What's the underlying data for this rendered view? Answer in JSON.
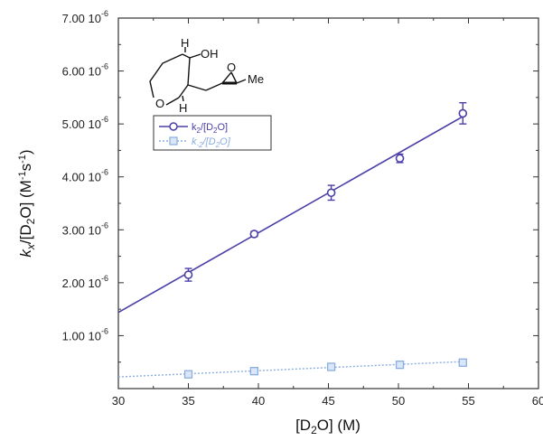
{
  "chart_data": {
    "type": "scatter",
    "xlabel": {
      "prefix": "[D",
      "sub": "2",
      "suffix": "O] (M)"
    },
    "ylabel": {
      "italic": "k",
      "italic_sub": "x",
      "mid": "/[D",
      "sub": "2",
      "mid2": "O] (M",
      "sup1": "-1",
      "mid3": "s",
      "sup2": "-1",
      "end": ")"
    },
    "xlim": [
      30,
      60
    ],
    "ylim": [
      0,
      7e-06
    ],
    "x_ticks": [
      "30",
      "35",
      "40",
      "45",
      "50",
      "55",
      "60"
    ],
    "y_ticks": [
      {
        "mantissa": "1.00 10",
        "exp": "-6"
      },
      {
        "mantissa": "2.00 10",
        "exp": "-6"
      },
      {
        "mantissa": "3.00 10",
        "exp": "-6"
      },
      {
        "mantissa": "4.00 10",
        "exp": "-6"
      },
      {
        "mantissa": "5.00 10",
        "exp": "-6"
      },
      {
        "mantissa": "6.00 10",
        "exp": "-6"
      },
      {
        "mantissa": "7.00 10",
        "exp": "-6"
      }
    ],
    "grid": false,
    "legend_position": "upper-left",
    "series": [
      {
        "name": "k2/[D2O]",
        "legend_label": {
          "pre": "k",
          "sub": "2",
          "mid": "/[D",
          "sub2": "2",
          "post": "O]"
        },
        "color": "#4a3fa8",
        "marker": "circle",
        "line_style": "solid",
        "points": [
          {
            "x": 35.0,
            "y": 2.15e-06,
            "err": 1.2e-07
          },
          {
            "x": 39.7,
            "y": 2.92e-06,
            "err": 5e-08
          },
          {
            "x": 45.2,
            "y": 3.7e-06,
            "err": 1.4e-07
          },
          {
            "x": 50.1,
            "y": 4.35e-06,
            "err": 8e-08
          },
          {
            "x": 54.6,
            "y": 5.2e-06,
            "err": 2e-07
          }
        ],
        "fit": [
          [
            30,
            1.44e-06
          ],
          [
            54.6,
            5.14e-06
          ]
        ]
      },
      {
        "name": "k-2/[D2O]",
        "legend_label": {
          "pre": "k",
          "sub": "-2",
          "mid": "/[D",
          "sub2": "2",
          "post": "O]"
        },
        "color": "#8aaee0",
        "marker": "square",
        "line_style": "dotted",
        "points": [
          {
            "x": 35.0,
            "y": 2.7e-07,
            "err": 3e-08
          },
          {
            "x": 39.7,
            "y": 3.3e-07,
            "err": 3e-08
          },
          {
            "x": 45.2,
            "y": 4.1e-07,
            "err": 3e-08
          },
          {
            "x": 50.1,
            "y": 4.5e-07,
            "err": 3e-08
          },
          {
            "x": 54.6,
            "y": 4.9e-07,
            "err": 4e-08
          }
        ],
        "fit": [
          [
            30,
            2.2e-07
          ],
          [
            54.6,
            5.1e-07
          ]
        ]
      }
    ],
    "inset_structure": {
      "labels": [
        "H",
        "OH",
        "O",
        "H",
        "O",
        "Me"
      ]
    }
  },
  "colors": {
    "axis": "#333333",
    "series1": "#4a3fa8",
    "series2": "#8aaee0"
  }
}
